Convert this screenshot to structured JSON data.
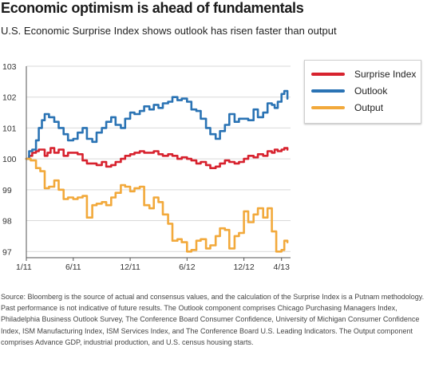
{
  "header": {
    "title": "Economic optimism is ahead of fundamentals",
    "subtitle": "U.S. Economic Surprise Index shows outlook has risen faster than output"
  },
  "source_note": "Source: Bloomberg is the source of actual and consensus values, and the calculation of the Surprise Index is a Putnam methodology. Past performance is not indicative of future results. The Outlook component comprises Chicago Purchasing Managers Index, Philadelphia Business Outlook Survey, The Conference Board Consumer Confidence, University of Michigan Consumer Confidence Index, ISM Manufacturing Index, ISM Services Index, and The Conference Board U.S. Leading Indicators. The Output component comprises Advance GDP, industrial production, and U.S. census housing starts.",
  "chart_data": {
    "type": "line",
    "title": "",
    "xlabel": "",
    "ylabel": "",
    "ylim": [
      96.8,
      103
    ],
    "yticks": [
      97,
      98,
      99,
      100,
      101,
      102,
      103
    ],
    "xlim": [
      "2011-01-01",
      "2013-04-30"
    ],
    "xticks": [
      {
        "date": "2011-01-01",
        "label": "1/11"
      },
      {
        "date": "2011-06-01",
        "label": "6/11"
      },
      {
        "date": "2011-12-01",
        "label": "12/11"
      },
      {
        "date": "2012-06-01",
        "label": "6/12"
      },
      {
        "date": "2012-12-01",
        "label": "12/12"
      },
      {
        "date": "2013-04-01",
        "label": "4/13"
      }
    ],
    "grid": "horizontal",
    "legend_position": "top-right",
    "series": [
      {
        "name": "Surprise Index",
        "color": "#d7222e",
        "x": [
          "2011-01-01",
          "2011-01-10",
          "2011-01-20",
          "2011-02-01",
          "2011-02-10",
          "2011-02-20",
          "2011-03-01",
          "2011-03-10",
          "2011-03-20",
          "2011-04-01",
          "2011-04-15",
          "2011-05-01",
          "2011-05-15",
          "2011-06-01",
          "2011-06-15",
          "2011-07-01",
          "2011-07-15",
          "2011-08-01",
          "2011-08-15",
          "2011-09-01",
          "2011-09-15",
          "2011-10-01",
          "2011-10-15",
          "2011-11-01",
          "2011-11-15",
          "2011-12-01",
          "2011-12-15",
          "2012-01-01",
          "2012-01-15",
          "2012-02-01",
          "2012-02-15",
          "2012-03-01",
          "2012-03-15",
          "2012-04-01",
          "2012-04-15",
          "2012-05-01",
          "2012-05-15",
          "2012-06-01",
          "2012-06-15",
          "2012-07-01",
          "2012-07-15",
          "2012-08-01",
          "2012-08-15",
          "2012-09-01",
          "2012-09-15",
          "2012-10-01",
          "2012-10-15",
          "2012-11-01",
          "2012-11-15",
          "2012-12-01",
          "2012-12-15",
          "2013-01-01",
          "2013-01-15",
          "2013-02-01",
          "2013-02-15",
          "2013-03-01",
          "2013-03-10",
          "2013-03-20",
          "2013-04-01",
          "2013-04-10",
          "2013-04-20"
        ],
        "values": [
          100.0,
          100.1,
          100.2,
          100.25,
          100.3,
          100.3,
          100.1,
          100.2,
          100.35,
          100.2,
          100.3,
          100.1,
          100.2,
          100.2,
          100.15,
          99.95,
          99.85,
          99.85,
          99.8,
          99.9,
          99.75,
          99.8,
          99.9,
          100.0,
          100.1,
          100.15,
          100.2,
          100.25,
          100.2,
          100.2,
          100.25,
          100.15,
          100.1,
          100.15,
          100.1,
          100.0,
          100.05,
          100.0,
          99.95,
          99.85,
          99.9,
          99.8,
          99.7,
          99.75,
          99.85,
          99.95,
          99.9,
          99.85,
          99.9,
          100.0,
          100.1,
          100.05,
          100.15,
          100.1,
          100.25,
          100.2,
          100.3,
          100.25,
          100.3,
          100.35,
          100.3
        ]
      },
      {
        "name": "Outlook",
        "color": "#2a73b4",
        "x": [
          "2011-01-01",
          "2011-01-10",
          "2011-01-20",
          "2011-02-01",
          "2011-02-10",
          "2011-02-20",
          "2011-03-01",
          "2011-03-15",
          "2011-04-01",
          "2011-04-15",
          "2011-05-01",
          "2011-05-15",
          "2011-06-01",
          "2011-06-15",
          "2011-07-01",
          "2011-07-15",
          "2011-08-01",
          "2011-08-15",
          "2011-09-01",
          "2011-09-15",
          "2011-10-01",
          "2011-10-15",
          "2011-11-01",
          "2011-11-15",
          "2011-12-01",
          "2011-12-15",
          "2012-01-01",
          "2012-01-15",
          "2012-02-01",
          "2012-02-15",
          "2012-03-01",
          "2012-03-15",
          "2012-04-01",
          "2012-04-15",
          "2012-05-01",
          "2012-05-15",
          "2012-06-01",
          "2012-06-15",
          "2012-07-01",
          "2012-07-15",
          "2012-08-01",
          "2012-08-15",
          "2012-09-01",
          "2012-09-15",
          "2012-10-01",
          "2012-10-15",
          "2012-11-01",
          "2012-11-15",
          "2012-12-01",
          "2012-12-15",
          "2013-01-01",
          "2013-01-15",
          "2013-02-01",
          "2013-02-15",
          "2013-03-01",
          "2013-03-10",
          "2013-03-20",
          "2013-04-01",
          "2013-04-10",
          "2013-04-20"
        ],
        "values": [
          100.0,
          100.25,
          100.3,
          100.6,
          101.0,
          101.25,
          101.45,
          101.35,
          101.2,
          101.0,
          100.8,
          100.6,
          100.65,
          100.85,
          101.0,
          100.65,
          100.55,
          100.85,
          101.0,
          101.2,
          101.35,
          101.1,
          101.0,
          101.3,
          101.5,
          101.45,
          101.55,
          101.7,
          101.6,
          101.75,
          101.65,
          101.8,
          101.85,
          102.0,
          101.9,
          101.95,
          101.85,
          101.6,
          101.55,
          101.3,
          101.0,
          100.8,
          100.65,
          100.9,
          101.1,
          101.45,
          101.2,
          101.3,
          101.3,
          101.25,
          101.6,
          101.35,
          101.5,
          101.8,
          101.75,
          101.65,
          101.85,
          102.1,
          102.2,
          101.95
        ]
      },
      {
        "name": "Output",
        "color": "#f2a93b",
        "x": [
          "2011-01-01",
          "2011-01-15",
          "2011-02-01",
          "2011-02-15",
          "2011-03-01",
          "2011-03-15",
          "2011-04-01",
          "2011-04-15",
          "2011-05-01",
          "2011-05-15",
          "2011-06-01",
          "2011-06-15",
          "2011-07-01",
          "2011-07-15",
          "2011-08-01",
          "2011-08-15",
          "2011-09-01",
          "2011-09-15",
          "2011-10-01",
          "2011-10-15",
          "2011-11-01",
          "2011-11-15",
          "2011-12-01",
          "2011-12-15",
          "2012-01-01",
          "2012-01-15",
          "2012-02-01",
          "2012-02-15",
          "2012-03-01",
          "2012-03-15",
          "2012-04-01",
          "2012-04-15",
          "2012-05-01",
          "2012-05-15",
          "2012-06-01",
          "2012-06-15",
          "2012-07-01",
          "2012-07-15",
          "2012-08-01",
          "2012-08-15",
          "2012-09-01",
          "2012-09-15",
          "2012-10-01",
          "2012-10-15",
          "2012-11-01",
          "2012-11-15",
          "2012-12-01",
          "2012-12-15",
          "2013-01-01",
          "2013-01-15",
          "2013-02-01",
          "2013-02-15",
          "2013-03-01",
          "2013-03-15",
          "2013-04-01",
          "2013-04-10",
          "2013-04-20"
        ],
        "values": [
          100.0,
          99.95,
          99.7,
          99.6,
          99.05,
          99.1,
          99.3,
          99.0,
          98.7,
          98.75,
          98.7,
          98.75,
          98.8,
          98.1,
          98.5,
          98.55,
          98.6,
          98.5,
          98.75,
          98.9,
          99.15,
          99.1,
          98.95,
          99.05,
          99.1,
          98.5,
          98.4,
          98.75,
          98.6,
          98.2,
          97.9,
          97.35,
          97.4,
          97.3,
          97.0,
          97.05,
          97.35,
          97.4,
          97.1,
          97.2,
          97.5,
          97.75,
          97.7,
          97.1,
          97.5,
          97.6,
          98.3,
          97.95,
          98.2,
          98.4,
          98.1,
          98.4,
          97.65,
          97.0,
          97.05,
          97.35,
          97.3
        ]
      }
    ]
  }
}
